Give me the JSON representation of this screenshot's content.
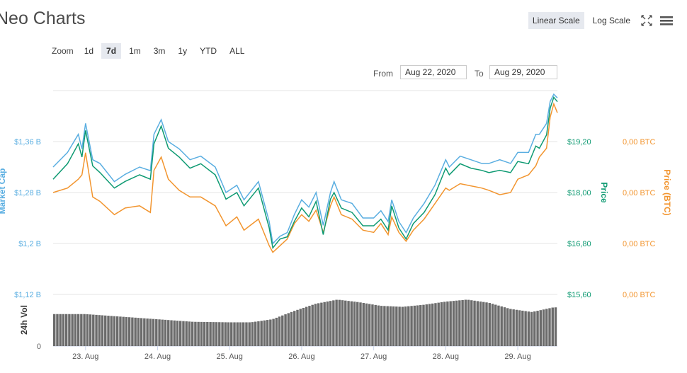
{
  "header": {
    "title": "Neo Charts"
  },
  "scale": {
    "linear_label": "Linear Scale",
    "log_label": "Log Scale",
    "active": "linear"
  },
  "icons": {
    "fullscreen": "fullscreen-icon",
    "menu": "hamburger-menu-icon"
  },
  "zoom": {
    "label": "Zoom",
    "options": [
      "1d",
      "7d",
      "1m",
      "3m",
      "1y",
      "YTD",
      "ALL"
    ],
    "active": "7d"
  },
  "range": {
    "from_label": "From",
    "from_value": "Aug 22, 2020",
    "to_label": "To",
    "to_value": "Aug 29, 2020"
  },
  "colors": {
    "market_cap": "#5aaee1",
    "price": "#0e9a72",
    "price_btc": "#f2952f",
    "volume": "#6b6b6b"
  },
  "chart_data": {
    "type": "line",
    "title": "",
    "x_tick_labels": [
      "23. Aug",
      "24. Aug",
      "25. Aug",
      "26. Aug",
      "27. Aug",
      "28. Aug",
      "29. Aug"
    ],
    "axes": {
      "market_cap": {
        "label": "Market Cap",
        "ticks": [
          "$1,36 B",
          "$1,28 B",
          "$1,2 B",
          "$1,12 B"
        ],
        "ylim": [
          1.12,
          1.4
        ]
      },
      "price": {
        "label": "Price",
        "ticks": [
          "$19,20",
          "$18,00",
          "$16,80",
          "$15,60"
        ],
        "ylim": [
          15.6,
          20.2
        ]
      },
      "price_btc": {
        "label": "Price (BTC)",
        "ticks": [
          "0,00 BTC",
          "0,00 BTC",
          "0,00 BTC",
          "0,00 BTC"
        ]
      },
      "volume": {
        "label": "24h Vol"
      }
    },
    "grid": true,
    "x_day_range": [
      22.55,
      29.55
    ],
    "series": [
      {
        "name": "Price",
        "x_day": [
          22.55,
          22.75,
          22.9,
          22.95,
          23.0,
          23.1,
          23.2,
          23.4,
          23.55,
          23.75,
          23.9,
          23.95,
          24.05,
          24.15,
          24.3,
          24.45,
          24.6,
          24.8,
          24.95,
          25.1,
          25.2,
          25.4,
          25.55,
          25.6,
          25.7,
          25.8,
          25.9,
          26.0,
          26.1,
          26.2,
          26.3,
          26.4,
          26.45,
          26.55,
          26.7,
          26.85,
          27.0,
          27.1,
          27.2,
          27.25,
          27.35,
          27.45,
          27.55,
          27.7,
          27.85,
          28.0,
          28.05,
          28.2,
          28.35,
          28.5,
          28.6,
          28.75,
          28.9,
          29.0,
          29.15,
          29.25,
          29.3,
          29.4,
          29.45,
          29.5,
          29.55
        ],
        "values": [
          18.2,
          18.55,
          19.0,
          18.7,
          19.3,
          18.5,
          18.35,
          18.0,
          18.15,
          18.3,
          18.2,
          19.0,
          19.4,
          18.9,
          18.7,
          18.45,
          18.55,
          18.3,
          17.75,
          17.9,
          17.6,
          18.0,
          17.1,
          16.65,
          16.85,
          16.9,
          17.25,
          17.55,
          17.35,
          17.7,
          16.95,
          17.75,
          17.9,
          17.55,
          17.45,
          17.15,
          17.15,
          17.3,
          17.05,
          17.6,
          17.1,
          16.85,
          17.2,
          17.45,
          17.85,
          18.45,
          18.3,
          18.55,
          18.45,
          18.4,
          18.35,
          18.4,
          18.35,
          18.6,
          18.55,
          18.95,
          18.9,
          19.2,
          19.8,
          20.05,
          19.95
        ]
      },
      {
        "name": "Market Cap",
        "x_day": [
          22.55,
          22.75,
          22.9,
          22.95,
          23.0,
          23.1,
          23.2,
          23.4,
          23.55,
          23.75,
          23.9,
          23.95,
          24.05,
          24.15,
          24.3,
          24.45,
          24.6,
          24.8,
          24.95,
          25.1,
          25.2,
          25.4,
          25.55,
          25.6,
          25.7,
          25.8,
          25.9,
          26.0,
          26.1,
          26.2,
          26.3,
          26.4,
          26.45,
          26.55,
          26.7,
          26.85,
          27.0,
          27.1,
          27.2,
          27.25,
          27.35,
          27.45,
          27.55,
          27.7,
          27.85,
          28.0,
          28.05,
          28.2,
          28.35,
          28.5,
          28.6,
          28.75,
          28.9,
          29.0,
          29.15,
          29.25,
          29.3,
          29.4,
          29.45,
          29.5,
          29.55
        ],
        "values": [
          1.295,
          1.315,
          1.34,
          1.32,
          1.355,
          1.305,
          1.3,
          1.275,
          1.285,
          1.295,
          1.29,
          1.34,
          1.36,
          1.33,
          1.32,
          1.305,
          1.31,
          1.295,
          1.26,
          1.27,
          1.25,
          1.275,
          1.22,
          1.19,
          1.2,
          1.205,
          1.23,
          1.25,
          1.24,
          1.26,
          1.215,
          1.26,
          1.275,
          1.25,
          1.245,
          1.225,
          1.225,
          1.235,
          1.22,
          1.25,
          1.22,
          1.205,
          1.225,
          1.245,
          1.27,
          1.305,
          1.295,
          1.31,
          1.305,
          1.3,
          1.3,
          1.305,
          1.3,
          1.315,
          1.315,
          1.34,
          1.34,
          1.355,
          1.385,
          1.395,
          1.39
        ]
      },
      {
        "name": "Price (BTC)",
        "x_day": [
          22.55,
          22.75,
          22.9,
          22.95,
          23.0,
          23.1,
          23.2,
          23.4,
          23.55,
          23.75,
          23.9,
          23.95,
          24.05,
          24.15,
          24.3,
          24.45,
          24.6,
          24.8,
          24.95,
          25.1,
          25.2,
          25.4,
          25.55,
          25.6,
          25.7,
          25.8,
          25.9,
          26.0,
          26.1,
          26.2,
          26.3,
          26.4,
          26.45,
          26.55,
          26.7,
          26.85,
          27.0,
          27.1,
          27.2,
          27.25,
          27.35,
          27.45,
          27.55,
          27.7,
          27.85,
          28.0,
          28.05,
          28.2,
          28.35,
          28.5,
          28.6,
          28.75,
          28.9,
          29.0,
          29.15,
          29.25,
          29.3,
          29.4,
          29.45,
          29.5,
          29.55
        ],
        "values": [
          17.9,
          18.0,
          18.2,
          18.3,
          18.8,
          17.8,
          17.7,
          17.4,
          17.55,
          17.6,
          17.45,
          18.4,
          18.7,
          18.2,
          17.95,
          17.8,
          17.8,
          17.6,
          17.15,
          17.35,
          17.05,
          17.3,
          16.7,
          16.55,
          16.7,
          16.85,
          17.2,
          17.4,
          17.25,
          17.5,
          17.0,
          17.6,
          17.8,
          17.4,
          17.3,
          17.05,
          17.0,
          17.2,
          16.95,
          17.35,
          17.0,
          16.8,
          17.05,
          17.3,
          17.65,
          18.0,
          17.95,
          18.1,
          18.05,
          18.0,
          17.95,
          17.85,
          17.9,
          18.2,
          18.3,
          18.5,
          18.7,
          18.9,
          19.6,
          19.9,
          19.7
        ]
      },
      {
        "name": "24h Vol",
        "x_day": [
          22.55,
          23.0,
          23.5,
          24.0,
          24.5,
          25.0,
          25.3,
          25.6,
          25.9,
          26.2,
          26.5,
          26.8,
          27.1,
          27.4,
          27.7,
          28.0,
          28.3,
          28.6,
          28.9,
          29.2,
          29.5
        ],
        "values_relative": [
          0.62,
          0.62,
          0.57,
          0.52,
          0.47,
          0.46,
          0.46,
          0.52,
          0.68,
          0.82,
          0.9,
          0.85,
          0.78,
          0.76,
          0.8,
          0.86,
          0.9,
          0.84,
          0.72,
          0.66,
          0.75
        ]
      }
    ]
  }
}
